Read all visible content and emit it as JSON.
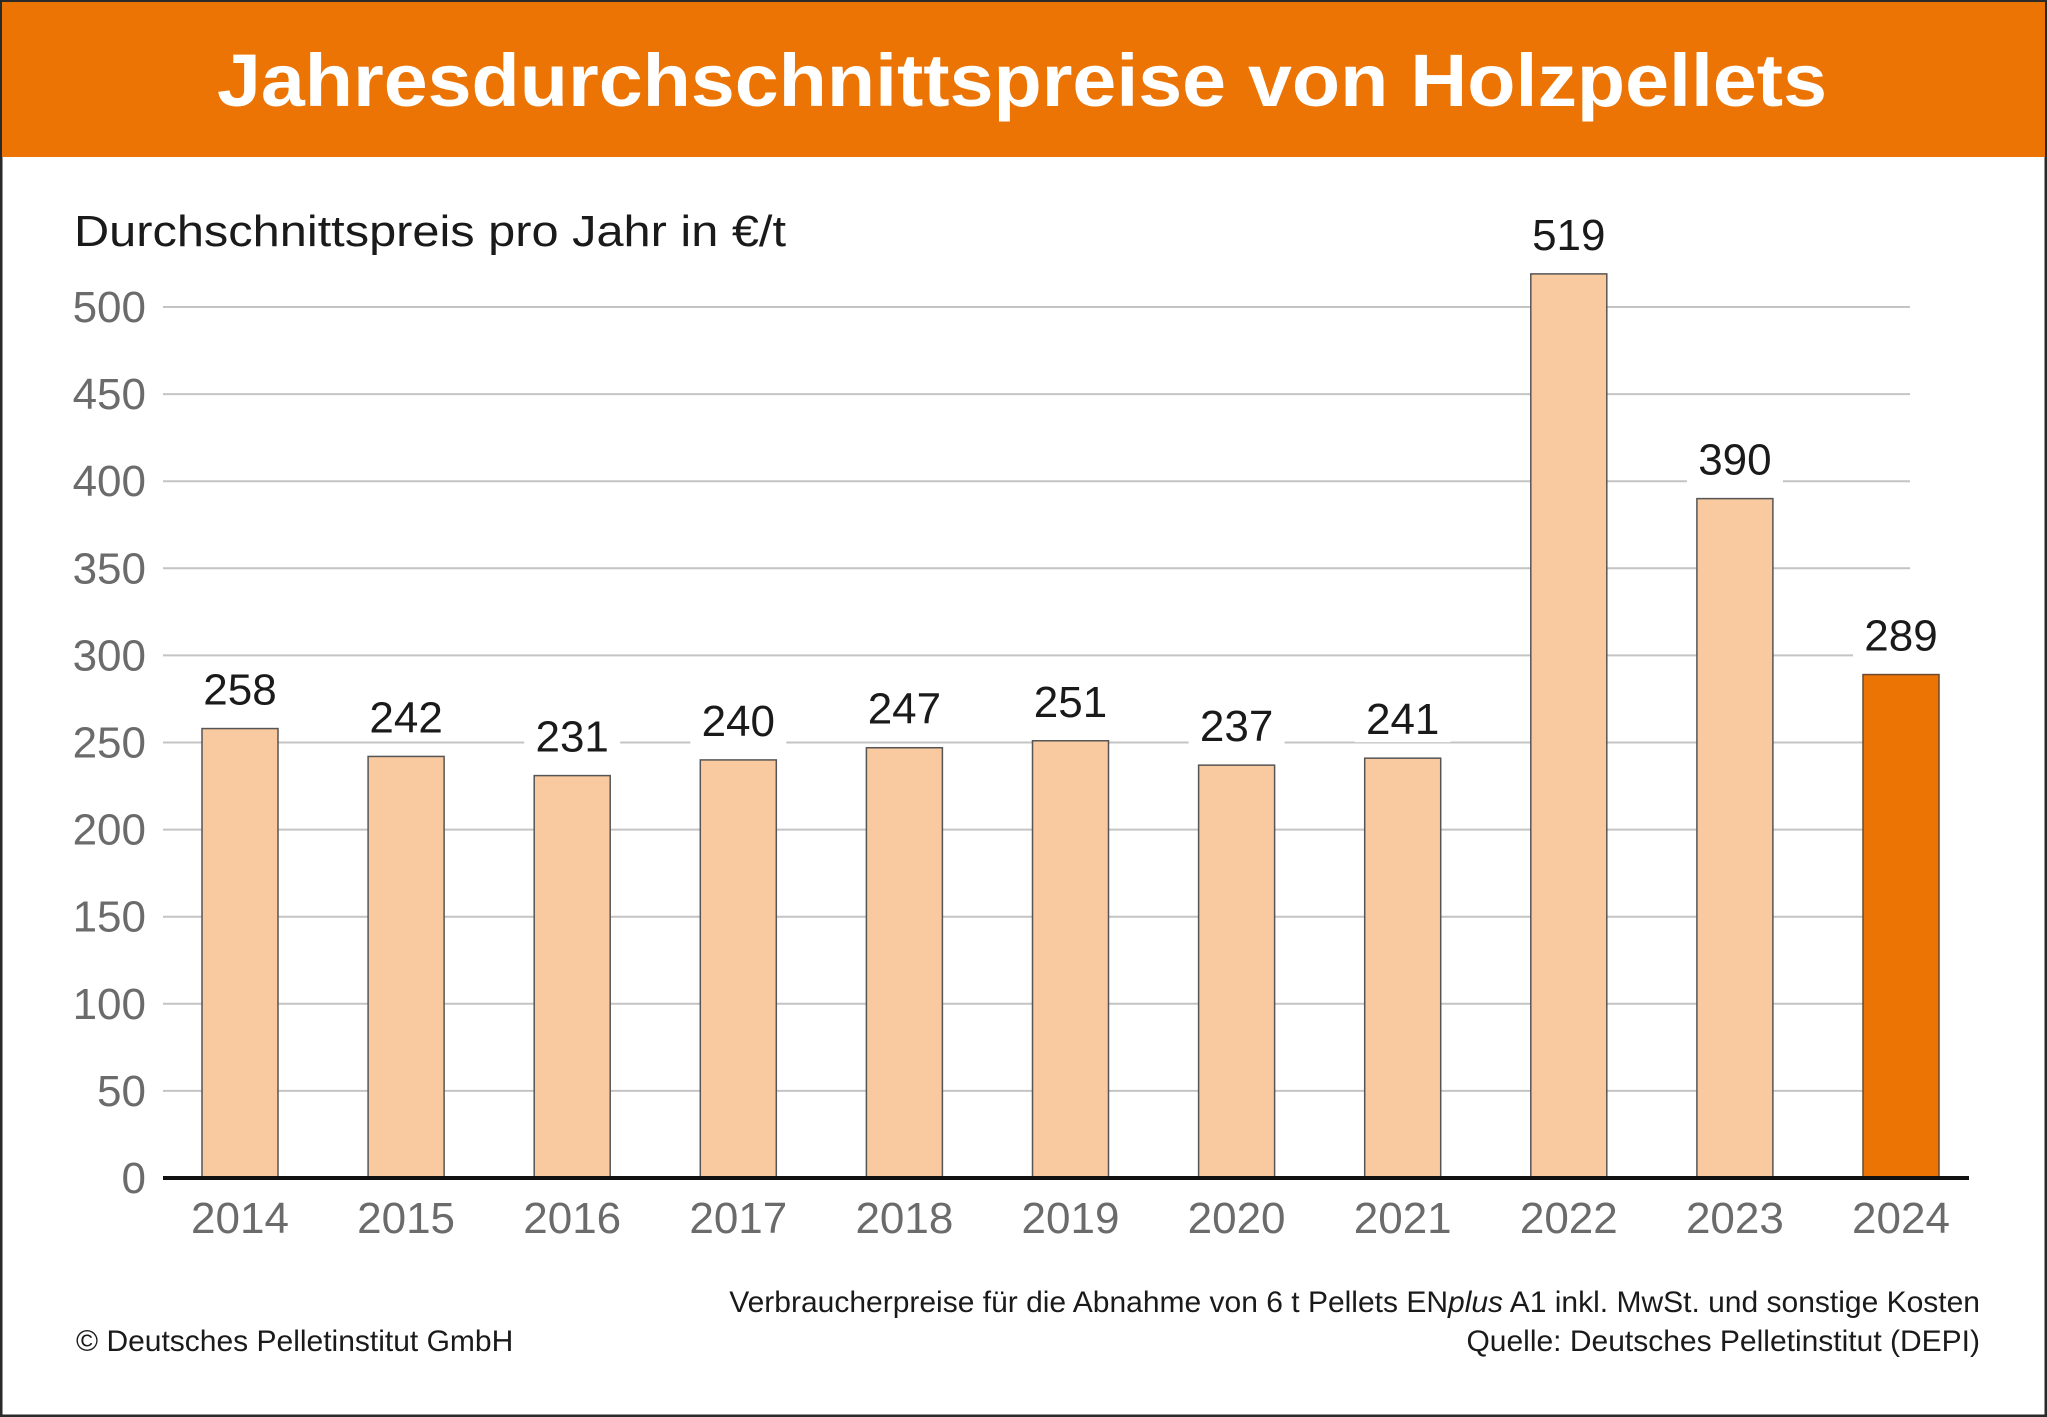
{
  "title": "Jahresdurchschnittspreise von Holzpellets",
  "colors": {
    "header": "#EC7404",
    "bar": "#F9CAA0",
    "highlight_bar": "#EC7404",
    "tick_text": "#6b6b6b",
    "grid": "#c4c4c4"
  },
  "chart_data": {
    "type": "bar",
    "title": "Jahresdurchschnittspreise von Holzpellets",
    "ylabel": "Durchschnittspreis pro Jahr in €/t",
    "xlabel": "",
    "categories": [
      "2014",
      "2015",
      "2016",
      "2017",
      "2018",
      "2019",
      "2020",
      "2021",
      "2022",
      "2023",
      "2024"
    ],
    "values": [
      258,
      242,
      231,
      240,
      247,
      251,
      237,
      241,
      519,
      390,
      289
    ],
    "data_labels": [
      "258",
      "242",
      "231",
      "240",
      "247",
      "251",
      "237",
      "241",
      "519",
      "390",
      "289"
    ],
    "highlight": "2024",
    "ylim": [
      0,
      500
    ],
    "yticks": [
      0,
      50,
      100,
      150,
      200,
      250,
      300,
      350,
      400,
      450,
      500
    ],
    "ytick_labels": [
      "0",
      "50",
      "100",
      "150",
      "200",
      "250",
      "300",
      "350",
      "400",
      "450",
      "500"
    ],
    "grid": true,
    "legend": "none"
  },
  "footer": {
    "note": "Verbraucherpreise für die Abnahme von 6 t Pellets EN",
    "note_italic": "plus",
    "note_end": " A1 inkl. MwSt. und sonstige Kosten",
    "source": "Quelle: Deutsches Pelletinstitut (DEPI)",
    "copyright": "© Deutsches Pelletinstitut GmbH"
  }
}
